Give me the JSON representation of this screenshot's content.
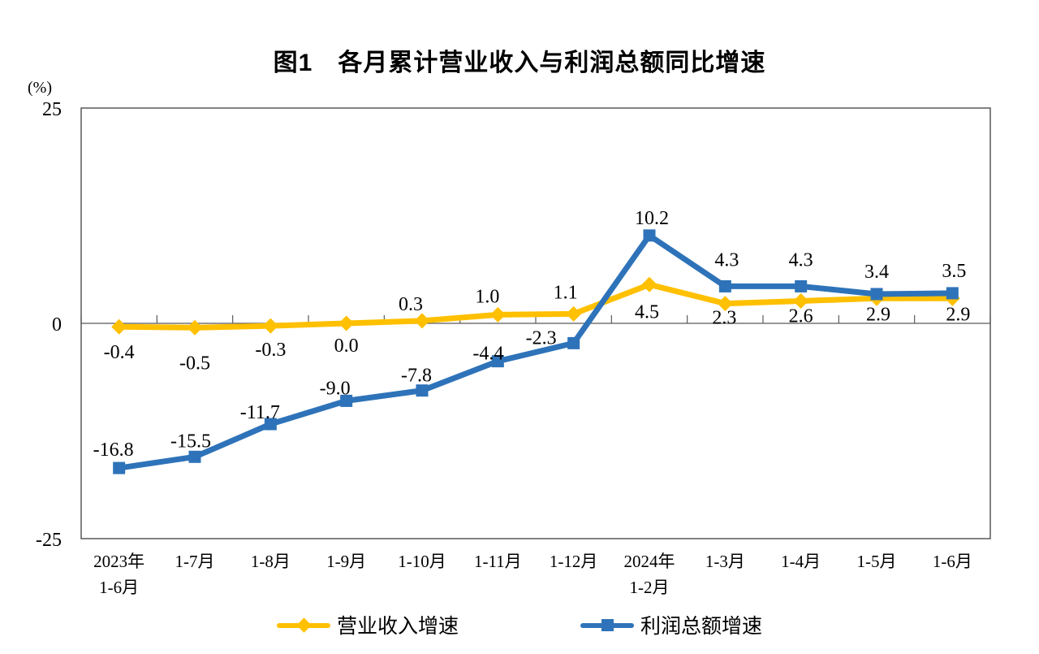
{
  "title": "图1　各月累计营业收入与利润总额同比增速",
  "y_unit": "(%)",
  "colors": {
    "revenue": "#FFC000",
    "profit": "#2E73B9",
    "axis": "#595959"
  },
  "legend": [
    {
      "label": "营业收入增速",
      "color": "#FFC000",
      "marker": "diamond"
    },
    {
      "label": "利润总额增速",
      "color": "#2E73B9",
      "marker": "square"
    }
  ],
  "chart_data": {
    "type": "line",
    "title": "图1　各月累计营业收入与利润总额同比增速",
    "ylabel": "(%)",
    "ylim": [
      -25,
      25
    ],
    "yticks": [
      25,
      0,
      -25
    ],
    "grid": false,
    "legend_position": "bottom",
    "categories": [
      [
        "2023年",
        "1-6月"
      ],
      [
        "1-7月"
      ],
      [
        "1-8月"
      ],
      [
        "1-9月"
      ],
      [
        "1-10月"
      ],
      [
        "1-11月"
      ],
      [
        "1-12月"
      ],
      [
        "2024年",
        "1-2月"
      ],
      [
        "1-3月"
      ],
      [
        "1-4月"
      ],
      [
        "1-5月"
      ],
      [
        "1-6月"
      ]
    ],
    "series": [
      {
        "name": "营业收入增速",
        "color": "#FFC000",
        "marker": "diamond",
        "values": [
          -0.4,
          -0.5,
          -0.3,
          0.0,
          0.3,
          1.0,
          1.1,
          4.5,
          2.3,
          2.6,
          2.9,
          2.9
        ],
        "labels": [
          "-0.4",
          "-0.5",
          "-0.3",
          "0.0",
          "0.3",
          "1.0",
          "1.1",
          "4.5",
          "2.3",
          "2.6",
          "2.9",
          "2.9"
        ],
        "label_offsets": [
          [
            0,
            30
          ],
          [
            0,
            42
          ],
          [
            0,
            28
          ],
          [
            0,
            26
          ],
          [
            -14,
            -22
          ],
          [
            -13,
            -24
          ],
          [
            -10,
            -28
          ],
          [
            -3,
            32
          ],
          [
            -1,
            16
          ],
          [
            0,
            17
          ],
          [
            2,
            18
          ],
          [
            7,
            18
          ]
        ]
      },
      {
        "name": "利润总额增速",
        "color": "#2E73B9",
        "marker": "square",
        "values": [
          -16.8,
          -15.5,
          -11.7,
          -9.0,
          -7.8,
          -4.4,
          -2.3,
          10.2,
          4.3,
          4.3,
          3.4,
          3.5
        ],
        "labels": [
          "-16.8",
          "-15.5",
          "-11.7",
          "-9.0",
          "-7.8",
          "-4.4",
          "-2.3",
          "10.2",
          "4.3",
          "4.3",
          "3.4",
          "3.5"
        ],
        "label_offsets": [
          [
            -7,
            -24
          ],
          [
            -5,
            -21
          ],
          [
            -13,
            -16
          ],
          [
            -14,
            -17
          ],
          [
            -7,
            -20
          ],
          [
            -12,
            -11
          ],
          [
            -40,
            -8
          ],
          [
            3,
            -23
          ],
          [
            2,
            -34
          ],
          [
            0,
            -34
          ],
          [
            0,
            -29
          ],
          [
            2,
            -29
          ]
        ]
      }
    ]
  }
}
